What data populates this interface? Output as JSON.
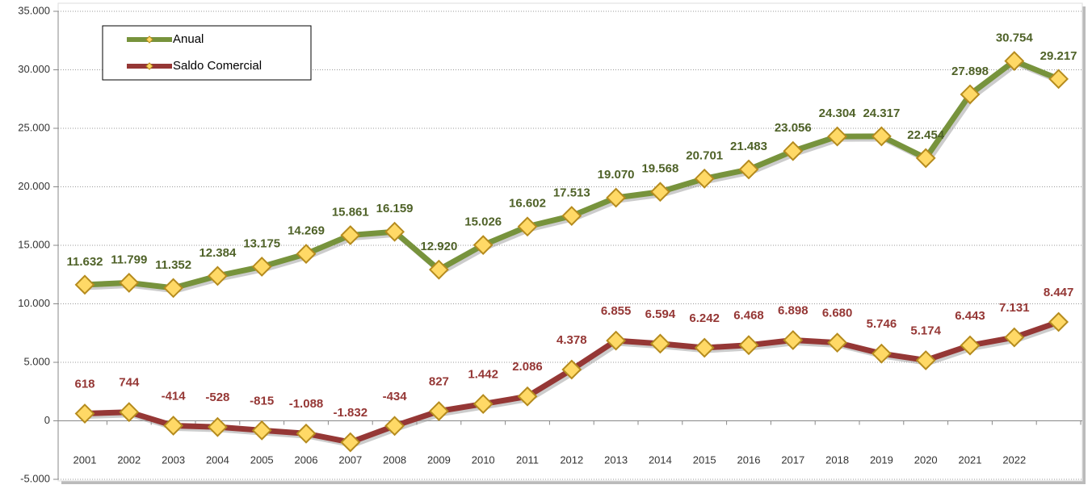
{
  "chart_data": {
    "type": "line",
    "categories": [
      "2001",
      "2002",
      "2003",
      "2004",
      "2005",
      "2006",
      "2007",
      "2008",
      "2009",
      "2010",
      "2011",
      "2012",
      "2013",
      "2014",
      "2015",
      "2016",
      "2017",
      "2018",
      "2019",
      "2020",
      "2021",
      "2022",
      null
    ],
    "series": [
      {
        "name": "Anual",
        "color": "#77933c",
        "label_color": "#4f6228",
        "marker_color": "#ffd966",
        "values": [
          11632,
          11799,
          11352,
          12384,
          13175,
          14269,
          15861,
          16159,
          12920,
          15026,
          16602,
          17513,
          19070,
          19568,
          20701,
          21483,
          23056,
          24304,
          24317,
          22454,
          27898,
          30754,
          29217
        ],
        "value_labels": [
          "11.632",
          "11.799",
          "11.352",
          "12.384",
          "13.175",
          "14.269",
          "15.861",
          "16.159",
          "12.920",
          "15.026",
          "16.602",
          "17.513",
          "19.070",
          "19.568",
          "20.701",
          "21.483",
          "23.056",
          "24.304",
          "24.317",
          "22.454",
          "27.898",
          "30.754",
          "29.217"
        ]
      },
      {
        "name": "Saldo Comercial",
        "color": "#953735",
        "label_color": "#953735",
        "marker_color": "#ffd966",
        "values": [
          618,
          744,
          -414,
          -528,
          -815,
          -1088,
          -1832,
          -434,
          827,
          1442,
          2086,
          4378,
          6855,
          6594,
          6242,
          6468,
          6898,
          6680,
          5746,
          5174,
          6443,
          7131,
          8447
        ],
        "value_labels": [
          "618",
          "744",
          "-414",
          "-528",
          "-815",
          "-1.088",
          "-1.832",
          "-434",
          "827",
          "1.442",
          "2.086",
          "4.378",
          "6.855",
          "6.594",
          "6.242",
          "6.468",
          "6.898",
          "6.680",
          "5.746",
          "5.174",
          "6.443",
          "7.131",
          "8.447"
        ]
      }
    ],
    "ylim": [
      -5000,
      35000
    ],
    "yticks": [
      {
        "value": -5000,
        "label": "-5.000"
      },
      0,
      {
        "value": 5000,
        "label": "5.000"
      },
      {
        "value": 10000,
        "label": "10.000"
      },
      {
        "value": 15000,
        "label": "15.000"
      },
      {
        "value": 20000,
        "label": "20.000"
      },
      {
        "value": 25000,
        "label": "25.000"
      },
      {
        "value": 30000,
        "label": "30.000"
      },
      {
        "value": 35000,
        "label": "35.000"
      }
    ],
    "grid": true,
    "legend": "upper left"
  }
}
